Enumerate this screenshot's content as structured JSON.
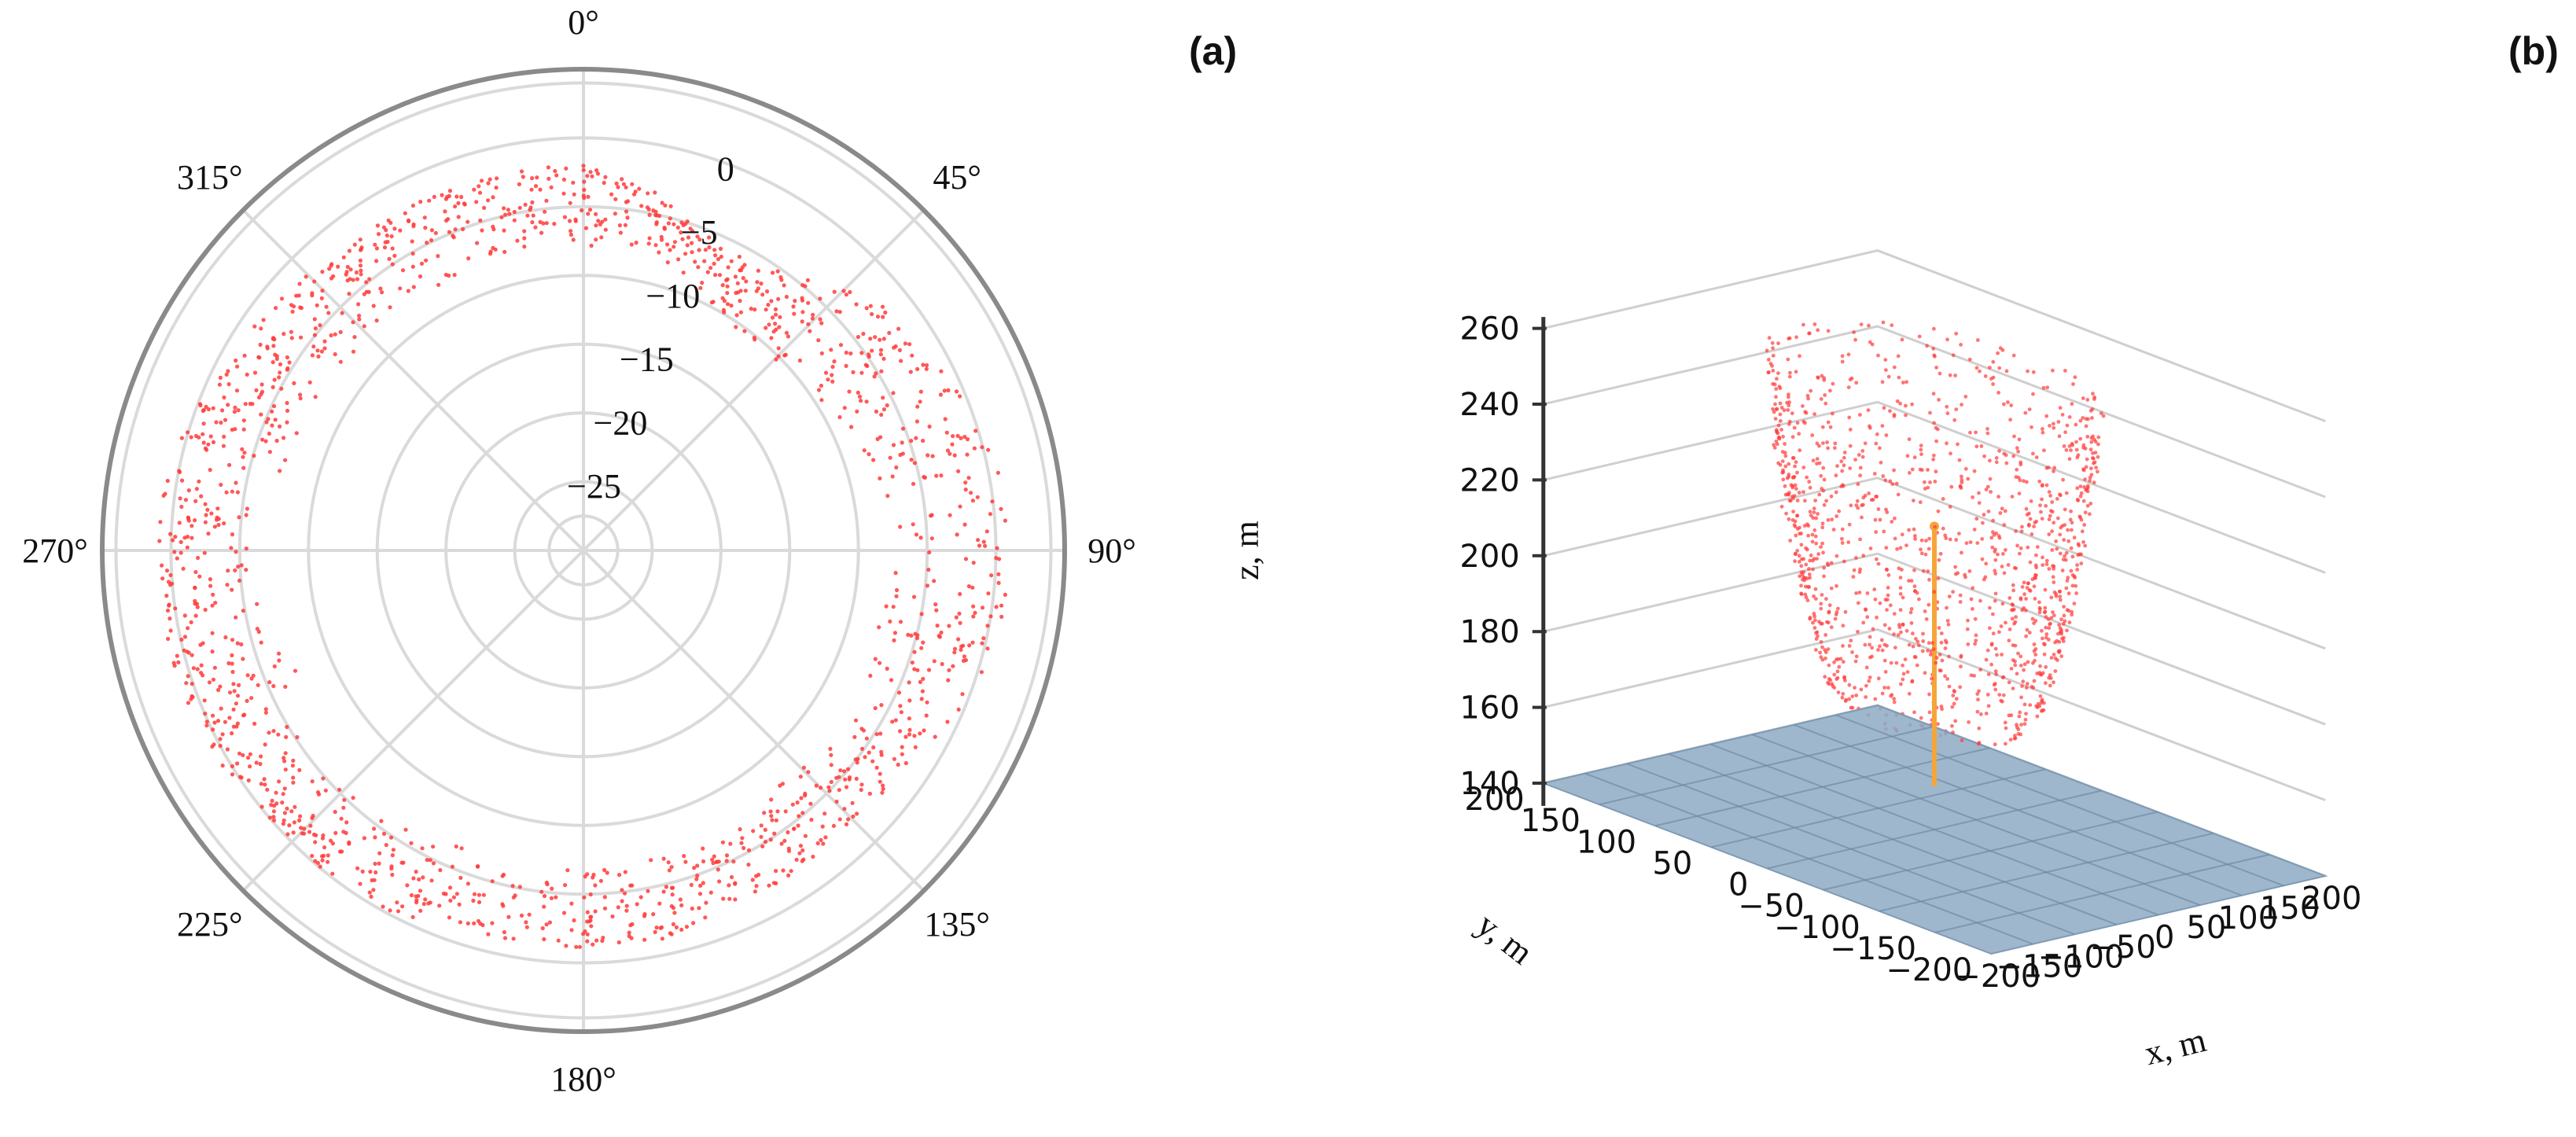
{
  "figure": {
    "panel_a_label": "(a)",
    "panel_b_label": "(b)"
  },
  "chart_data": [
    {
      "id": "a",
      "type": "scatter",
      "coordinate_system": "polar",
      "title": "",
      "theta_direction": "clockwise",
      "theta_zero_location": "top",
      "theta_ticks": [
        0,
        45,
        90,
        135,
        180,
        225,
        270,
        315
      ],
      "theta_tick_labels": [
        "0°",
        "45°",
        "90°",
        "135°",
        "180°",
        "225°",
        "270°",
        "315°"
      ],
      "r_ticks": [
        0,
        -5,
        -10,
        -15,
        -20,
        -25
      ],
      "r_tick_labels": [
        "0",
        "−5",
        "−10",
        "−15",
        "−20",
        "−25"
      ],
      "r_range": [
        -30,
        5
      ],
      "grid": true,
      "point_color": "#ff3b3b",
      "ring_points": [
        {
          "theta": 0,
          "r_inner": -8,
          "r_outer": -2
        },
        {
          "theta": 10,
          "r_inner": -8,
          "r_outer": -3
        },
        {
          "theta": 20,
          "r_inner": -9,
          "r_outer": -5
        },
        {
          "theta": 30,
          "r_inner": -10,
          "r_outer": -6
        },
        {
          "theta": 40,
          "r_inner": -11,
          "r_outer": -4
        },
        {
          "theta": 50,
          "r_inner": -11,
          "r_outer": -2
        },
        {
          "theta": 60,
          "r_inner": -10,
          "r_outer": -1
        },
        {
          "theta": 70,
          "r_inner": -9,
          "r_outer": 0
        },
        {
          "theta": 80,
          "r_inner": -8,
          "r_outer": 1
        },
        {
          "theta": 90,
          "r_inner": -8,
          "r_outer": 1
        },
        {
          "theta": 100,
          "r_inner": -8,
          "r_outer": 1
        },
        {
          "theta": 110,
          "r_inner": -8,
          "r_outer": 0
        },
        {
          "theta": 120,
          "r_inner": -8,
          "r_outer": -1
        },
        {
          "theta": 130,
          "r_inner": -8,
          "r_outer": -2
        },
        {
          "theta": 140,
          "r_inner": -8,
          "r_outer": -2
        },
        {
          "theta": 150,
          "r_inner": -7,
          "r_outer": -2
        },
        {
          "theta": 160,
          "r_inner": -7,
          "r_outer": -2
        },
        {
          "theta": 170,
          "r_inner": -7,
          "r_outer": -1
        },
        {
          "theta": 180,
          "r_inner": -7,
          "r_outer": -1
        },
        {
          "theta": 190,
          "r_inner": -7,
          "r_outer": -1
        },
        {
          "theta": 200,
          "r_inner": -7,
          "r_outer": -1
        },
        {
          "theta": 210,
          "r_inner": -6,
          "r_outer": 0
        },
        {
          "theta": 220,
          "r_inner": -6,
          "r_outer": 0
        },
        {
          "theta": 230,
          "r_inner": -5,
          "r_outer": 0
        },
        {
          "theta": 240,
          "r_inner": -6,
          "r_outer": 1
        },
        {
          "theta": 250,
          "r_inner": -8,
          "r_outer": 1
        },
        {
          "theta": 260,
          "r_inner": -6,
          "r_outer": 1
        },
        {
          "theta": 270,
          "r_inner": -6,
          "r_outer": 1
        },
        {
          "theta": 280,
          "r_inner": -7,
          "r_outer": 1
        },
        {
          "theta": 290,
          "r_inner": -8,
          "r_outer": 0
        },
        {
          "theta": 300,
          "r_inner": -8,
          "r_outer": -1
        },
        {
          "theta": 310,
          "r_inner": -8,
          "r_outer": -1
        },
        {
          "theta": 320,
          "r_inner": -8,
          "r_outer": -2
        },
        {
          "theta": 330,
          "r_inner": -8,
          "r_outer": -2
        },
        {
          "theta": 340,
          "r_inner": -8,
          "r_outer": -2
        },
        {
          "theta": 350,
          "r_inner": -8,
          "r_outer": -2
        }
      ]
    },
    {
      "id": "b",
      "type": "scatter",
      "coordinate_system": "3d",
      "title": "",
      "xlabel": "x, m",
      "ylabel": "y, m",
      "zlabel": "z, m",
      "xlim": [
        -200,
        200
      ],
      "ylim": [
        -200,
        200
      ],
      "zlim": [
        140,
        260
      ],
      "x_ticks": [
        -200,
        -150,
        -100,
        -50,
        0,
        50,
        100,
        150,
        200
      ],
      "x_tick_labels": [
        "−200",
        "−150",
        "−100",
        "−50",
        "0",
        "50",
        "100",
        "150",
        "200"
      ],
      "y_ticks": [
        -200,
        -150,
        -100,
        -50,
        0,
        50,
        100,
        150,
        200
      ],
      "y_tick_labels": [
        "−200",
        "−150",
        "−100",
        "−50",
        "0",
        "50",
        "100",
        "150",
        "200"
      ],
      "z_ticks": [
        140,
        160,
        180,
        200,
        220,
        240,
        260
      ],
      "z_tick_labels": [
        "140",
        "160",
        "180",
        "200",
        "220",
        "240",
        "260"
      ],
      "grid": true,
      "ground_plane": {
        "z": 140,
        "color": "#8eaac4"
      },
      "mast": {
        "x": 0,
        "y": 0,
        "z_bottom": 140,
        "z_top": 220,
        "color": "#f5a53a"
      },
      "point_color": "#ff3b3b",
      "shell": {
        "center_x": 0,
        "center_y": 0,
        "z_min": 170,
        "z_max": 260,
        "radius_bottom": 60,
        "radius_top": 120
      }
    }
  ]
}
